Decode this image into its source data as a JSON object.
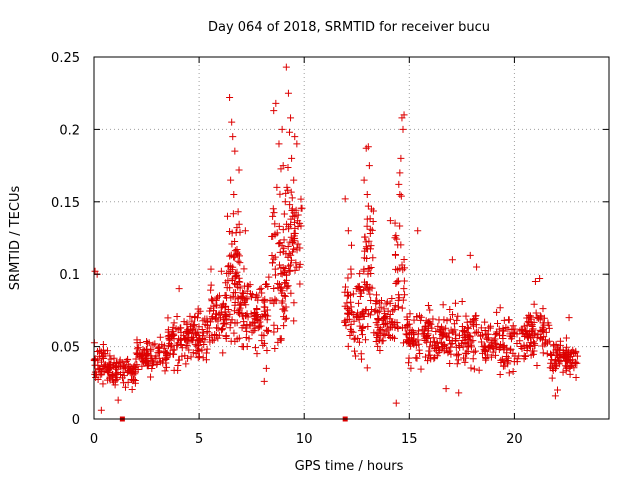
{
  "chart_data": {
    "type": "scatter",
    "title": "Day 064 of 2018, SRMTID for receiver bucu",
    "xlabel": "GPS time / hours",
    "ylabel": "SRMTID / TECUs",
    "xlim": [
      0,
      24.5
    ],
    "ylim": [
      0,
      0.25
    ],
    "xticks": [
      0,
      5,
      10,
      15,
      20
    ],
    "xtick_labels": [
      "0",
      "5",
      "10",
      "15",
      "20"
    ],
    "yticks": [
      0,
      0.05,
      0.1,
      0.15,
      0.2,
      0.25
    ],
    "ytick_labels": [
      "0",
      "0.05",
      "0.1",
      "0.15",
      "0.2",
      "0.25"
    ],
    "grid": true,
    "marker": "+",
    "color": "#dd0000",
    "data_gap_hours": [
      10.0,
      11.9
    ],
    "zero_markers_x": [
      1.35,
      11.95
    ],
    "seed": 64,
    "segments": [
      {
        "t0": 0.0,
        "t1": 0.6,
        "base": 0.038,
        "spread": 0.012,
        "n": 40
      },
      {
        "t0": 0.6,
        "t1": 2.0,
        "base": 0.033,
        "spread": 0.009,
        "n": 90
      },
      {
        "t0": 2.0,
        "t1": 3.5,
        "base": 0.043,
        "spread": 0.01,
        "n": 90
      },
      {
        "t0": 3.5,
        "t1": 4.5,
        "base": 0.055,
        "spread": 0.013,
        "n": 70
      },
      {
        "t0": 4.5,
        "t1": 5.5,
        "base": 0.058,
        "spread": 0.014,
        "n": 70
      },
      {
        "t0": 5.5,
        "t1": 6.3,
        "base": 0.072,
        "spread": 0.02,
        "n": 70
      },
      {
        "t0": 6.3,
        "t1": 7.0,
        "base": 0.095,
        "spread": 0.035,
        "n": 80
      },
      {
        "t0": 7.0,
        "t1": 8.4,
        "base": 0.073,
        "spread": 0.018,
        "n": 100
      },
      {
        "t0": 8.4,
        "t1": 9.2,
        "base": 0.105,
        "spread": 0.045,
        "n": 80
      },
      {
        "t0": 9.2,
        "t1": 9.9,
        "base": 0.125,
        "spread": 0.04,
        "n": 60
      },
      {
        "t0": 11.9,
        "t1": 12.8,
        "base": 0.075,
        "spread": 0.025,
        "n": 70
      },
      {
        "t0": 12.8,
        "t1": 13.3,
        "base": 0.1,
        "spread": 0.04,
        "n": 50
      },
      {
        "t0": 13.3,
        "t1": 14.3,
        "base": 0.068,
        "spread": 0.018,
        "n": 70
      },
      {
        "t0": 14.3,
        "t1": 14.8,
        "base": 0.095,
        "spread": 0.045,
        "n": 40
      },
      {
        "t0": 14.8,
        "t1": 16.5,
        "base": 0.058,
        "spread": 0.015,
        "n": 110
      },
      {
        "t0": 16.5,
        "t1": 18.5,
        "base": 0.055,
        "spread": 0.016,
        "n": 120
      },
      {
        "t0": 18.5,
        "t1": 20.5,
        "base": 0.052,
        "spread": 0.014,
        "n": 120
      },
      {
        "t0": 20.5,
        "t1": 21.7,
        "base": 0.058,
        "spread": 0.016,
        "n": 80
      },
      {
        "t0": 21.7,
        "t1": 23.0,
        "base": 0.042,
        "spread": 0.01,
        "n": 90
      }
    ],
    "outliers": [
      [
        6.45,
        0.222
      ],
      [
        6.55,
        0.205
      ],
      [
        6.6,
        0.195
      ],
      [
        6.7,
        0.185
      ],
      [
        6.5,
        0.165
      ],
      [
        6.65,
        0.155
      ],
      [
        6.9,
        0.172
      ],
      [
        6.35,
        0.14
      ],
      [
        7.2,
        0.13
      ],
      [
        8.55,
        0.213
      ],
      [
        8.65,
        0.218
      ],
      [
        8.8,
        0.19
      ],
      [
        8.95,
        0.2
      ],
      [
        9.15,
        0.243
      ],
      [
        9.25,
        0.225
      ],
      [
        9.35,
        0.208
      ],
      [
        9.3,
        0.198
      ],
      [
        9.0,
        0.175
      ],
      [
        9.4,
        0.18
      ],
      [
        9.55,
        0.195
      ],
      [
        9.65,
        0.19
      ],
      [
        9.5,
        0.165
      ],
      [
        8.7,
        0.16
      ],
      [
        9.1,
        0.15
      ],
      [
        9.45,
        0.14
      ],
      [
        11.95,
        0.152
      ],
      [
        12.1,
        0.13
      ],
      [
        12.25,
        0.12
      ],
      [
        12.85,
        0.165
      ],
      [
        12.95,
        0.187
      ],
      [
        13.05,
        0.188
      ],
      [
        13.1,
        0.175
      ],
      [
        13.0,
        0.155
      ],
      [
        13.2,
        0.145
      ],
      [
        14.5,
        0.162
      ],
      [
        14.55,
        0.17
      ],
      [
        14.6,
        0.18
      ],
      [
        14.65,
        0.208
      ],
      [
        14.75,
        0.21
      ],
      [
        14.7,
        0.2
      ],
      [
        14.55,
        0.155
      ],
      [
        14.1,
        0.137
      ],
      [
        15.4,
        0.13
      ],
      [
        17.05,
        0.11
      ],
      [
        17.9,
        0.113
      ],
      [
        18.2,
        0.105
      ],
      [
        21.0,
        0.095
      ],
      [
        21.2,
        0.097
      ],
      [
        0.35,
        0.006
      ],
      [
        0.05,
        0.102
      ],
      [
        0.15,
        0.1
      ],
      [
        1.15,
        0.013
      ],
      [
        4.05,
        0.09
      ],
      [
        8.1,
        0.026
      ],
      [
        8.2,
        0.035
      ],
      [
        16.75,
        0.021
      ],
      [
        17.35,
        0.018
      ],
      [
        21.95,
        0.016
      ],
      [
        22.05,
        0.02
      ],
      [
        22.6,
        0.07
      ]
    ]
  }
}
